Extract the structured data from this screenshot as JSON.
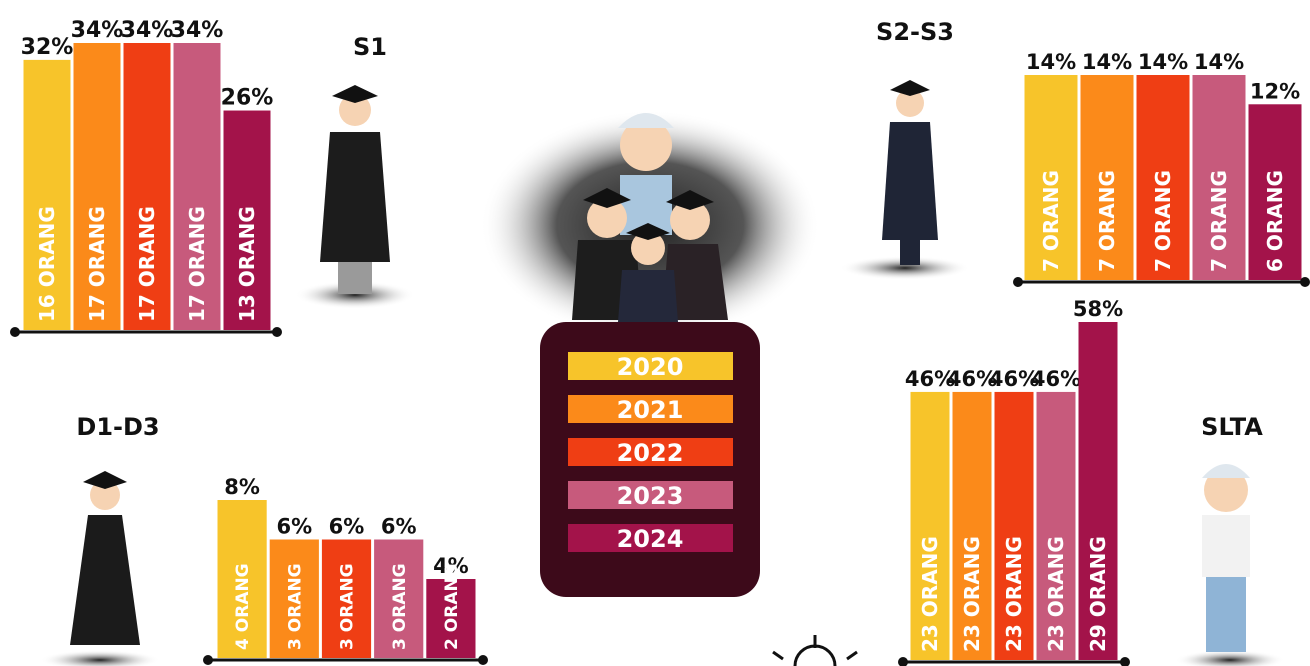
{
  "legend": {
    "items": [
      {
        "label": "2020",
        "color": "#f7c42a"
      },
      {
        "label": "2021",
        "color": "#fb8a1a"
      },
      {
        "label": "2022",
        "color": "#ef3e14"
      },
      {
        "label": "2023",
        "color": "#c75a7c"
      },
      {
        "label": "2024",
        "color": "#a3134a"
      }
    ]
  },
  "chart_data": [
    {
      "type": "bar",
      "title": "S1",
      "values": [
        32,
        34,
        34,
        34,
        26
      ],
      "value_labels": [
        "32%",
        "34%",
        "34%",
        "34%",
        "26%"
      ],
      "count_labels": [
        "16 ORANG",
        "17 ORANG",
        "17 ORANG",
        "17 ORANG",
        "13 ORANG"
      ]
    },
    {
      "type": "bar",
      "title": "S2-S3",
      "values": [
        14,
        14,
        14,
        14,
        12
      ],
      "value_labels": [
        "14%",
        "14%",
        "14%",
        "14%",
        "12%"
      ],
      "count_labels": [
        "7 ORANG",
        "7 ORANG",
        "7 ORANG",
        "7 ORANG",
        "6 ORANG"
      ]
    },
    {
      "type": "bar",
      "title": "D1-D3",
      "values": [
        8,
        6,
        6,
        6,
        4
      ],
      "value_labels": [
        "8%",
        "6%",
        "6%",
        "6%",
        "4%"
      ],
      "count_labels": [
        "4 ORANG",
        "3 ORANG",
        "3 ORANG",
        "3 ORANG",
        "2 ORANG"
      ]
    },
    {
      "type": "bar",
      "title": "SLTA",
      "values": [
        46,
        46,
        46,
        46,
        58
      ],
      "value_labels": [
        "46%",
        "46%",
        "46%",
        "46%",
        "58%"
      ],
      "count_labels": [
        "23 ORANG",
        "23 ORANG",
        "23 ORANG",
        "23 ORANG",
        "29 ORANG"
      ]
    }
  ]
}
